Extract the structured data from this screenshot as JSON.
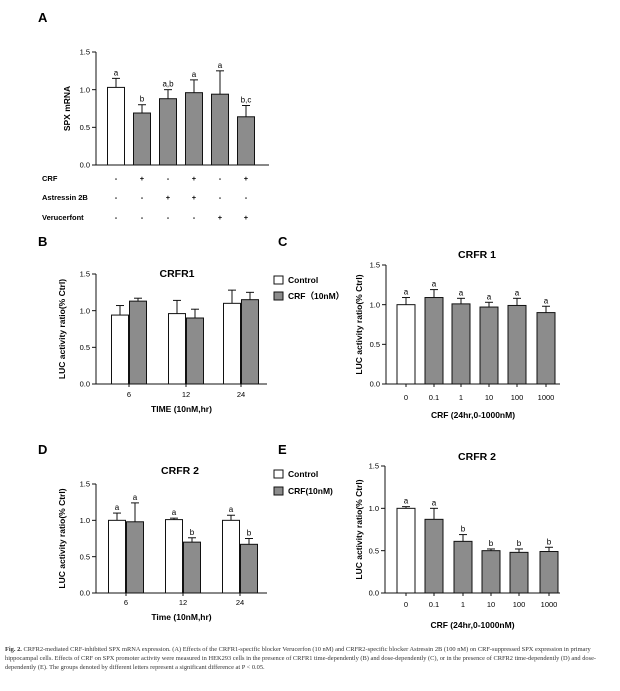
{
  "chart_data": [
    {
      "panel": "A",
      "type": "bar",
      "title": "",
      "ylabel": "SPX mRNA",
      "xlabel": "",
      "ylim": [
        0.0,
        1.5
      ],
      "yticks": [
        "0.0",
        "0.5",
        "1.0",
        "1.5"
      ],
      "conditions": [
        {
          "label": "CRF",
          "marks": [
            "-",
            "+",
            "-",
            "+",
            "-",
            "+"
          ]
        },
        {
          "label": "Astressin 2B",
          "marks": [
            "-",
            "-",
            "+",
            "+",
            "-",
            "-"
          ]
        },
        {
          "label": "Verucerfont",
          "marks": [
            "-",
            "-",
            "-",
            "-",
            "+",
            "+"
          ]
        }
      ],
      "values": [
        1.03,
        0.69,
        0.88,
        0.96,
        0.94,
        0.64
      ],
      "errors": [
        0.12,
        0.11,
        0.12,
        0.17,
        0.31,
        0.15
      ],
      "fills": [
        "white",
        "gray",
        "gray",
        "gray",
        "gray",
        "gray"
      ],
      "sig_letters": [
        "a",
        "b",
        "a,b",
        "a",
        "a",
        "b,c"
      ]
    },
    {
      "panel": "B",
      "type": "bar",
      "title": "CRFR1",
      "ylabel": "LUC activity ratio(% Ctrl)",
      "xlabel": "TIME (10nM,hr)",
      "ylim": [
        0.0,
        1.5
      ],
      "yticks": [
        "0.0",
        "0.5",
        "1.0",
        "1.5"
      ],
      "categories": [
        "6",
        "12",
        "24"
      ],
      "series": [
        {
          "name": "Control",
          "values": [
            0.94,
            0.96,
            1.1
          ],
          "errors": [
            0.13,
            0.18,
            0.18
          ]
        },
        {
          "name": "CRF（10nM）",
          "values": [
            1.13,
            0.9,
            1.15
          ],
          "errors": [
            0.04,
            0.12,
            0.1
          ]
        }
      ],
      "sig_letters": []
    },
    {
      "panel": "C",
      "type": "bar",
      "title": "CRFR 1",
      "ylabel": "LUC activity ratio(% Ctrl)",
      "xlabel": "CRF (24hr,0-1000nM)",
      "ylim": [
        0.0,
        1.5
      ],
      "yticks": [
        "0.0",
        "0.5",
        "1.0",
        "1.5"
      ],
      "categories": [
        "0",
        "0.1",
        "1",
        "10",
        "100",
        "1000"
      ],
      "values": [
        1.0,
        1.09,
        1.01,
        0.97,
        0.99,
        0.9
      ],
      "errors": [
        0.09,
        0.1,
        0.07,
        0.06,
        0.09,
        0.08
      ],
      "fills": [
        "white",
        "gray",
        "gray",
        "gray",
        "gray",
        "gray"
      ],
      "sig_letters": [
        "a",
        "a",
        "a",
        "a",
        "a",
        "a"
      ]
    },
    {
      "panel": "D",
      "type": "bar",
      "title": "CRFR 2",
      "ylabel": "LUC activity ratio(% Ctrl)",
      "xlabel": "Time (10nM,hr)",
      "ylim": [
        0.0,
        1.5
      ],
      "yticks": [
        "0.0",
        "0.5",
        "1.0",
        "1.5"
      ],
      "categories": [
        "6",
        "12",
        "24"
      ],
      "series": [
        {
          "name": "Control",
          "values": [
            1.0,
            1.01,
            1.0
          ],
          "errors": [
            0.1,
            0.02,
            0.07
          ]
        },
        {
          "name": "CRF(10nM)",
          "values": [
            0.98,
            0.7,
            0.67
          ],
          "errors": [
            0.26,
            0.06,
            0.08
          ]
        }
      ],
      "sig_letters": [
        [
          "a",
          "a"
        ],
        [
          "a",
          "b"
        ],
        [
          "a",
          "b"
        ]
      ]
    },
    {
      "panel": "E",
      "type": "bar",
      "title": "CRFR 2",
      "ylabel": "LUC activity ratio(% Ctrl)",
      "xlabel": "CRF (24hr,0-1000nM)",
      "ylim": [
        0.0,
        1.5
      ],
      "yticks": [
        "0.0",
        "0.5",
        "1.0",
        "1.5"
      ],
      "categories": [
        "0",
        "0.1",
        "1",
        "10",
        "100",
        "1000"
      ],
      "values": [
        1.0,
        0.87,
        0.61,
        0.5,
        0.48,
        0.49
      ],
      "errors": [
        0.02,
        0.13,
        0.08,
        0.02,
        0.04,
        0.05
      ],
      "fills": [
        "white",
        "gray",
        "gray",
        "gray",
        "gray",
        "gray"
      ],
      "sig_letters": [
        "a",
        "a",
        "b",
        "b",
        "b",
        "b"
      ]
    }
  ],
  "caption": {
    "label": "Fig. 2.",
    "text": "CRFR2-mediated CRF-inhibited SPX mRNA expression. (A) Effects of the CRFR1-specific blocker Verucerfon (10 nM) and CRFR2-specific blocker Astressin 2B (100 nM) on CRF-suppressed SPX expression in primary hippocampal cells. Effects of CRF on SPX promoter activity were measured in HEK293 cells in the presence of CRFR1 time-dependently (B) and dose-dependently (C), or in the presence of CRFR2 time-dependently (D) and dose-dependently (E). The groups denoted by different letters represent a significant difference at P < 0.05."
  },
  "colors": {
    "gray_bar": "#8c8c8c",
    "white_bar": "#ffffff",
    "stroke": "#111111"
  }
}
